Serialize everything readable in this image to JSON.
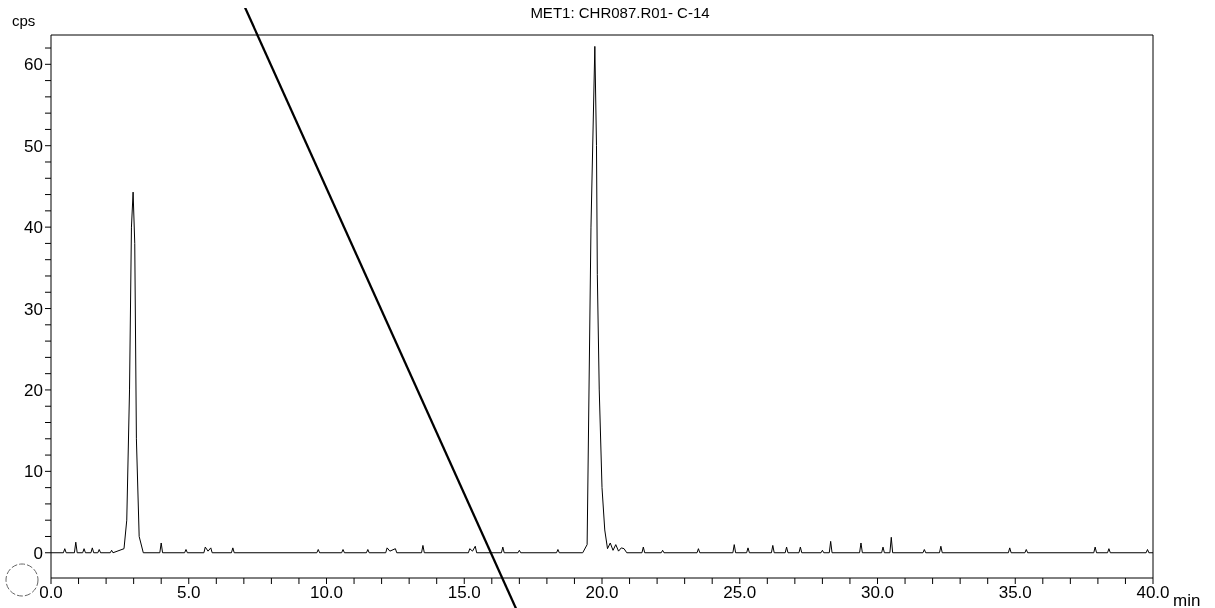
{
  "chart_data": {
    "type": "line",
    "title": "MET1: CHR087.R01- C-14",
    "xlabel": "min",
    "ylabel": "cps",
    "xlim": [
      0,
      40
    ],
    "ylim": [
      -3.1,
      63.6
    ],
    "xticks": [
      {
        "value": 0,
        "label": "0.0"
      },
      {
        "value": 1,
        "label": null
      },
      {
        "value": 2,
        "label": null
      },
      {
        "value": 3,
        "label": null
      },
      {
        "value": 4,
        "label": null
      },
      {
        "value": 5,
        "label": "5.0"
      },
      {
        "value": 6,
        "label": null
      },
      {
        "value": 7,
        "label": null
      },
      {
        "value": 8,
        "label": null
      },
      {
        "value": 9,
        "label": null
      },
      {
        "value": 10,
        "label": "10.0"
      },
      {
        "value": 11,
        "label": null
      },
      {
        "value": 12,
        "label": null
      },
      {
        "value": 13,
        "label": null
      },
      {
        "value": 14,
        "label": null
      },
      {
        "value": 15,
        "label": "15.0"
      },
      {
        "value": 16,
        "label": null
      },
      {
        "value": 17,
        "label": null
      },
      {
        "value": 18,
        "label": null
      },
      {
        "value": 19,
        "label": null
      },
      {
        "value": 20,
        "label": "20.0"
      },
      {
        "value": 21,
        "label": null
      },
      {
        "value": 22,
        "label": null
      },
      {
        "value": 23,
        "label": null
      },
      {
        "value": 24,
        "label": null
      },
      {
        "value": 25,
        "label": "25.0"
      },
      {
        "value": 26,
        "label": null
      },
      {
        "value": 27,
        "label": null
      },
      {
        "value": 28,
        "label": null
      },
      {
        "value": 29,
        "label": null
      },
      {
        "value": 30,
        "label": "30.0"
      },
      {
        "value": 31,
        "label": null
      },
      {
        "value": 32,
        "label": null
      },
      {
        "value": 33,
        "label": null
      },
      {
        "value": 34,
        "label": null
      },
      {
        "value": 35,
        "label": "35.0"
      },
      {
        "value": 36,
        "label": null
      },
      {
        "value": 37,
        "label": null
      },
      {
        "value": 38,
        "label": null
      },
      {
        "value": 39,
        "label": null
      },
      {
        "value": 40,
        "label": "40.0"
      }
    ],
    "yticks": [
      0,
      {
        "value": 2,
        "label": null
      },
      {
        "value": 4,
        "label": null
      },
      {
        "value": 6,
        "label": null
      },
      {
        "value": 8,
        "label": null
      },
      10,
      {
        "value": 12,
        "label": null
      },
      {
        "value": 14,
        "label": null
      },
      {
        "value": 16,
        "label": null
      },
      {
        "value": 18,
        "label": null
      },
      20,
      {
        "value": 22,
        "label": null
      },
      {
        "value": 24,
        "label": null
      },
      {
        "value": 26,
        "label": null
      },
      {
        "value": 28,
        "label": null
      },
      30,
      {
        "value": 32,
        "label": null
      },
      {
        "value": 34,
        "label": null
      },
      {
        "value": 36,
        "label": null
      },
      {
        "value": 38,
        "label": null
      },
      40,
      {
        "value": 42,
        "label": null
      },
      {
        "value": 44,
        "label": null
      },
      {
        "value": 46,
        "label": null
      },
      {
        "value": 48,
        "label": null
      },
      50,
      {
        "value": 52,
        "label": null
      },
      {
        "value": 54,
        "label": null
      },
      {
        "value": 56,
        "label": null
      },
      {
        "value": 58,
        "label": null
      },
      60,
      {
        "value": 62,
        "label": null
      }
    ],
    "series": [
      {
        "color": "#000000",
        "x": [
          0,
          0.45,
          0.5,
          0.55,
          0.85,
          0.9,
          0.95,
          1.15,
          1.2,
          1.25,
          1.45,
          1.5,
          1.55,
          1.7,
          1.75,
          1.8,
          2.15,
          2.2,
          2.25,
          2.65,
          2.75,
          2.85,
          2.92,
          2.98,
          3.04,
          3.1,
          3.2,
          3.35,
          3.95,
          4.0,
          4.05,
          4.85,
          4.9,
          4.95,
          5.55,
          5.6,
          5.7,
          5.8,
          5.85,
          6.55,
          6.6,
          6.65,
          9.65,
          9.7,
          9.75,
          10.55,
          10.6,
          10.65,
          11.45,
          11.5,
          11.55,
          12.15,
          12.2,
          12.3,
          12.5,
          12.55,
          13.45,
          13.5,
          13.55,
          15.15,
          15.2,
          15.3,
          15.4,
          15.45,
          16.35,
          16.4,
          16.45,
          16.95,
          17.0,
          17.05,
          18.35,
          18.4,
          18.45,
          19.3,
          19.46,
          19.6,
          19.74,
          19.8,
          19.83,
          19.9,
          20.0,
          20.1,
          20.2,
          20.3,
          20.4,
          20.5,
          20.6,
          20.7,
          20.8,
          20.9,
          21.45,
          21.5,
          21.55,
          22.15,
          22.2,
          22.25,
          23.45,
          23.5,
          23.55,
          24.75,
          24.8,
          24.85,
          25.25,
          25.3,
          25.35,
          26.15,
          26.2,
          26.25,
          26.65,
          26.7,
          26.75,
          27.15,
          27.2,
          27.25,
          27.95,
          28.0,
          28.05,
          28.25,
          28.3,
          28.35,
          29.35,
          29.4,
          29.45,
          30.15,
          30.2,
          30.25,
          30.45,
          30.5,
          30.55,
          31.65,
          31.7,
          31.75,
          32.25,
          32.3,
          32.35,
          34.75,
          34.8,
          34.85,
          35.35,
          35.4,
          35.45,
          37.85,
          37.9,
          37.95,
          38.35,
          38.4,
          38.45,
          39.75,
          39.8,
          39.85,
          40
        ],
        "values": [
          0,
          0,
          0.5,
          0,
          0,
          1.3,
          0,
          0,
          0.5,
          0,
          0,
          0.6,
          0,
          0,
          0.4,
          0,
          0,
          0.3,
          0,
          0.5,
          4,
          20,
          40,
          44.3,
          38,
          14,
          2,
          0,
          0,
          1.2,
          0,
          0,
          0.4,
          0,
          0,
          0.7,
          0.2,
          0.6,
          0,
          0,
          0.6,
          0,
          0,
          0.4,
          0,
          0,
          0.4,
          0,
          0,
          0.4,
          0,
          0,
          0.6,
          0.2,
          0.5,
          0,
          0,
          0.9,
          0,
          0,
          0.5,
          0.2,
          0.8,
          0,
          0,
          0.7,
          0,
          0,
          0.3,
          0,
          0,
          0.4,
          0,
          0,
          1,
          40,
          62.2,
          50,
          34.2,
          20,
          8,
          2.8,
          0.5,
          1.2,
          0.3,
          1.0,
          0.2,
          0.6,
          0.5,
          0,
          0,
          0.7,
          0,
          0,
          0.3,
          0,
          0,
          0.5,
          0,
          0,
          1.0,
          0,
          0,
          0.6,
          0,
          0,
          0.9,
          0,
          0,
          0.7,
          0,
          0,
          0.7,
          0,
          0,
          0.3,
          0,
          0,
          1.4,
          0,
          0,
          1.2,
          0,
          0,
          0.7,
          0,
          0,
          1.9,
          0,
          0,
          0.4,
          0,
          0,
          0.8,
          0,
          0,
          0.6,
          0,
          0,
          0.4,
          0,
          0,
          0.7,
          0,
          0,
          0.5,
          0,
          0,
          0.4,
          0,
          0
        ]
      }
    ]
  }
}
